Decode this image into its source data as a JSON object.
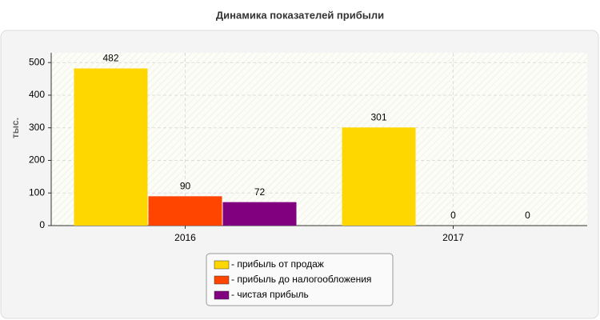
{
  "chart_data": {
    "type": "bar",
    "title": "Динамика показателей прибыли",
    "y_label": "тыс.",
    "categories": [
      "2016",
      "2017"
    ],
    "series": [
      {
        "name": "- прибыль от продаж",
        "color": "#ffd700",
        "values": [
          482,
          301
        ]
      },
      {
        "name": "- прибыль до налогообложения",
        "color": "#ff4500",
        "values": [
          90,
          0
        ]
      },
      {
        "name": "- чистая прибыль",
        "color": "#800080",
        "values": [
          72,
          0
        ]
      }
    ],
    "ylim": [
      0,
      530
    ],
    "yticks": [
      0,
      100,
      200,
      300,
      400,
      500
    ],
    "grid": true
  }
}
